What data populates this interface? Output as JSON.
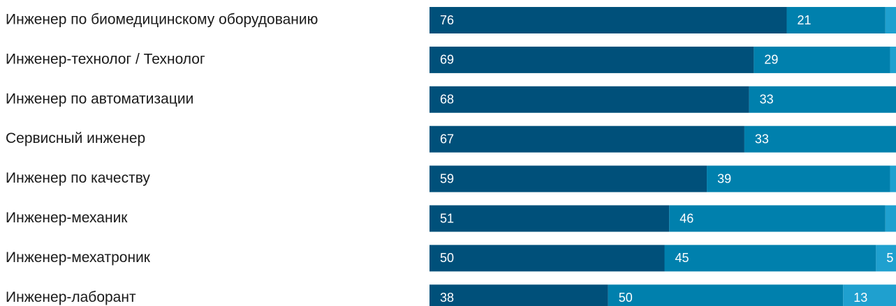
{
  "chart_data": {
    "type": "stacked_bar",
    "orientation": "horizontal",
    "categories": [
      "Инженер по биомедицинскому оборудованию",
      "Инженер-технолог / Технолог",
      "Инженер по автоматизации",
      "Сервисный инженер",
      "Инженер по качеству",
      "Инженер-механик",
      "Инженер-мехатроник",
      "Инженер-лаборант"
    ],
    "xlim": [
      0,
      100
    ],
    "series": [
      {
        "color": "#00507a",
        "values": [
          76,
          69,
          68,
          67,
          59,
          51,
          50,
          38
        ]
      },
      {
        "color": "#0080ad",
        "values": [
          21,
          29,
          33,
          33,
          39,
          46,
          45,
          50
        ]
      },
      {
        "color": "#1fa0cf",
        "values": [
          3,
          2,
          0,
          0,
          2,
          3,
          5,
          13
        ],
        "value_labels": [
          null,
          null,
          null,
          null,
          null,
          null,
          "5",
          "13"
        ]
      }
    ]
  }
}
